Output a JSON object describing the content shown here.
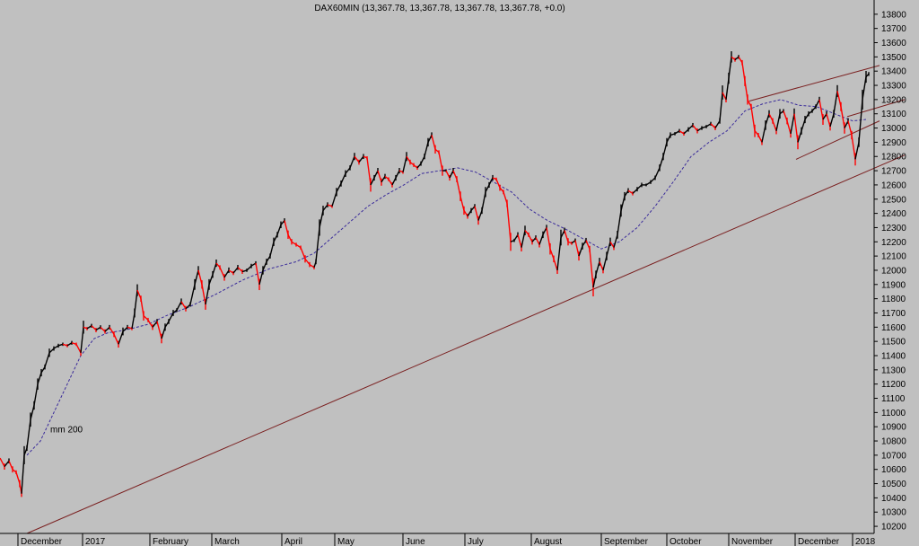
{
  "chart_data": {
    "type": "line",
    "title": "DAX60MIN (13,367.78, 13,367.78, 13,367.78, 13,367.78, +0.0)",
    "xlabel": "",
    "ylabel": "",
    "grid": false,
    "ylim": [
      10150,
      13900
    ],
    "y_ticks": [
      10200,
      10300,
      10400,
      10500,
      10600,
      10700,
      10800,
      10900,
      11000,
      11100,
      11200,
      11300,
      11400,
      11500,
      11600,
      11700,
      11800,
      11900,
      12000,
      12100,
      12200,
      12300,
      12400,
      12500,
      12600,
      12700,
      12800,
      12900,
      13000,
      13100,
      13200,
      13300,
      13400,
      13500,
      13600,
      13700,
      13800
    ],
    "months": [
      "December",
      "2017",
      "February",
      "March",
      "April",
      "May",
      "June",
      "July",
      "August",
      "September",
      "October",
      "November",
      "December",
      "2018"
    ],
    "series": [
      {
        "name": "DAX60MIN",
        "color": "#000000",
        "down_color": "#ff0000",
        "values": [
          [
            0,
            10680
          ],
          [
            5,
            10620
          ],
          [
            10,
            10660
          ],
          [
            14,
            10600
          ],
          [
            18,
            10580
          ],
          [
            22,
            10500
          ],
          [
            24,
            10430
          ],
          [
            27,
            10700
          ],
          [
            30,
            10750
          ],
          [
            34,
            10950
          ],
          [
            38,
            11050
          ],
          [
            42,
            11200
          ],
          [
            46,
            11280
          ],
          [
            50,
            11320
          ],
          [
            55,
            11420
          ],
          [
            60,
            11450
          ],
          [
            65,
            11470
          ],
          [
            70,
            11480
          ],
          [
            75,
            11470
          ],
          [
            80,
            11490
          ],
          [
            85,
            11480
          ],
          [
            90,
            11420
          ],
          [
            93,
            11600
          ],
          [
            97,
            11590
          ],
          [
            102,
            11610
          ],
          [
            107,
            11580
          ],
          [
            112,
            11600
          ],
          [
            117,
            11570
          ],
          [
            122,
            11600
          ],
          [
            127,
            11550
          ],
          [
            132,
            11480
          ],
          [
            137,
            11570
          ],
          [
            142,
            11600
          ],
          [
            147,
            11590
          ],
          [
            150,
            11700
          ],
          [
            153,
            11860
          ],
          [
            157,
            11800
          ],
          [
            160,
            11680
          ],
          [
            165,
            11650
          ],
          [
            170,
            11600
          ],
          [
            175,
            11640
          ],
          [
            180,
            11520
          ],
          [
            184,
            11600
          ],
          [
            188,
            11640
          ],
          [
            193,
            11700
          ],
          [
            197,
            11720
          ],
          [
            202,
            11780
          ],
          [
            207,
            11730
          ],
          [
            212,
            11760
          ],
          [
            217,
            11900
          ],
          [
            221,
            12000
          ],
          [
            225,
            11900
          ],
          [
            229,
            11760
          ],
          [
            233,
            11900
          ],
          [
            237,
            11970
          ],
          [
            241,
            12050
          ],
          [
            245,
            12020
          ],
          [
            250,
            11950
          ],
          [
            255,
            12000
          ],
          [
            260,
            11980
          ],
          [
            265,
            12020
          ],
          [
            270,
            11990
          ],
          [
            275,
            12000
          ],
          [
            280,
            12030
          ],
          [
            285,
            12050
          ],
          [
            289,
            11900
          ],
          [
            293,
            12000
          ],
          [
            297,
            12060
          ],
          [
            301,
            12100
          ],
          [
            305,
            12200
          ],
          [
            309,
            12250
          ],
          [
            313,
            12320
          ],
          [
            317,
            12350
          ],
          [
            321,
            12250
          ],
          [
            325,
            12200
          ],
          [
            330,
            12180
          ],
          [
            335,
            12160
          ],
          [
            340,
            12080
          ],
          [
            345,
            12040
          ],
          [
            350,
            12020
          ],
          [
            352,
            12060
          ],
          [
            356,
            12300
          ],
          [
            360,
            12420
          ],
          [
            365,
            12460
          ],
          [
            370,
            12450
          ],
          [
            375,
            12550
          ],
          [
            380,
            12610
          ],
          [
            385,
            12680
          ],
          [
            390,
            12720
          ],
          [
            395,
            12800
          ],
          [
            400,
            12760
          ],
          [
            405,
            12800
          ],
          [
            409,
            12790
          ],
          [
            413,
            12600
          ],
          [
            417,
            12650
          ],
          [
            421,
            12700
          ],
          [
            425,
            12620
          ],
          [
            429,
            12660
          ],
          [
            433,
            12640
          ],
          [
            437,
            12600
          ],
          [
            441,
            12650
          ],
          [
            445,
            12700
          ],
          [
            449,
            12690
          ],
          [
            453,
            12800
          ],
          [
            457,
            12760
          ],
          [
            461,
            12740
          ],
          [
            465,
            12720
          ],
          [
            469,
            12750
          ],
          [
            473,
            12800
          ],
          [
            477,
            12900
          ],
          [
            481,
            12950
          ],
          [
            485,
            12850
          ],
          [
            489,
            12830
          ],
          [
            493,
            12700
          ],
          [
            497,
            12700
          ],
          [
            501,
            12650
          ],
          [
            505,
            12700
          ],
          [
            509,
            12640
          ],
          [
            513,
            12520
          ],
          [
            517,
            12420
          ],
          [
            521,
            12380
          ],
          [
            525,
            12420
          ],
          [
            529,
            12450
          ],
          [
            533,
            12350
          ],
          [
            537,
            12420
          ],
          [
            541,
            12550
          ],
          [
            545,
            12600
          ],
          [
            549,
            12650
          ],
          [
            553,
            12640
          ],
          [
            557,
            12580
          ],
          [
            561,
            12550
          ],
          [
            565,
            12470
          ],
          [
            569,
            12200
          ],
          [
            573,
            12210
          ],
          [
            577,
            12250
          ],
          [
            581,
            12160
          ],
          [
            585,
            12280
          ],
          [
            589,
            12250
          ],
          [
            593,
            12200
          ],
          [
            597,
            12230
          ],
          [
            601,
            12180
          ],
          [
            605,
            12250
          ],
          [
            609,
            12300
          ],
          [
            613,
            12150
          ],
          [
            617,
            12080
          ],
          [
            621,
            12000
          ],
          [
            625,
            12230
          ],
          [
            629,
            12280
          ],
          [
            633,
            12200
          ],
          [
            637,
            12190
          ],
          [
            641,
            12210
          ],
          [
            645,
            12100
          ],
          [
            649,
            12170
          ],
          [
            653,
            12210
          ],
          [
            657,
            12150
          ],
          [
            661,
            11880
          ],
          [
            664,
            11970
          ],
          [
            668,
            12060
          ],
          [
            672,
            12000
          ],
          [
            676,
            12100
          ],
          [
            680,
            12200
          ],
          [
            684,
            12160
          ],
          [
            688,
            12250
          ],
          [
            692,
            12420
          ],
          [
            696,
            12520
          ],
          [
            700,
            12560
          ],
          [
            705,
            12540
          ],
          [
            710,
            12570
          ],
          [
            715,
            12600
          ],
          [
            720,
            12600
          ],
          [
            725,
            12620
          ],
          [
            730,
            12650
          ],
          [
            735,
            12720
          ],
          [
            739,
            12800
          ],
          [
            743,
            12900
          ],
          [
            747,
            12950
          ],
          [
            752,
            12960
          ],
          [
            757,
            12980
          ],
          [
            762,
            12960
          ],
          [
            767,
            12990
          ],
          [
            772,
            13020
          ],
          [
            777,
            12980
          ],
          [
            782,
            13000
          ],
          [
            787,
            13010
          ],
          [
            792,
            13030
          ],
          [
            797,
            13000
          ],
          [
            802,
            13050
          ],
          [
            805,
            13250
          ],
          [
            809,
            13200
          ],
          [
            812,
            13350
          ],
          [
            815,
            13500
          ],
          [
            819,
            13480
          ],
          [
            823,
            13500
          ],
          [
            827,
            13460
          ],
          [
            830,
            13330
          ],
          [
            833,
            13200
          ],
          [
            837,
            13150
          ],
          [
            841,
            12980
          ],
          [
            845,
            12950
          ],
          [
            849,
            12900
          ],
          [
            853,
            13020
          ],
          [
            857,
            13100
          ],
          [
            861,
            13050
          ],
          [
            865,
            12980
          ],
          [
            869,
            13100
          ],
          [
            873,
            13120
          ],
          [
            877,
            13050
          ],
          [
            881,
            12960
          ],
          [
            885,
            13100
          ],
          [
            889,
            12900
          ],
          [
            893,
            12980
          ],
          [
            897,
            13060
          ],
          [
            901,
            13100
          ],
          [
            905,
            13120
          ],
          [
            909,
            13150
          ],
          [
            913,
            13200
          ],
          [
            917,
            13060
          ],
          [
            921,
            13100
          ],
          [
            925,
            13010
          ],
          [
            929,
            13100
          ],
          [
            933,
            13260
          ],
          [
            937,
            13150
          ],
          [
            941,
            13000
          ],
          [
            945,
            13050
          ],
          [
            949,
            12950
          ],
          [
            953,
            12780
          ],
          [
            957,
            12900
          ],
          [
            961,
            13200
          ],
          [
            965,
            13360
          ],
          [
            968,
            13380
          ]
        ]
      },
      {
        "name": "mm 200",
        "color": "#3a2b9a",
        "values": [
          [
            30,
            10700
          ],
          [
            45,
            10800
          ],
          [
            60,
            11000
          ],
          [
            75,
            11200
          ],
          [
            90,
            11400
          ],
          [
            105,
            11520
          ],
          [
            120,
            11560
          ],
          [
            140,
            11580
          ],
          [
            165,
            11620
          ],
          [
            185,
            11680
          ],
          [
            210,
            11740
          ],
          [
            240,
            11830
          ],
          [
            270,
            11930
          ],
          [
            300,
            12010
          ],
          [
            330,
            12060
          ],
          [
            350,
            12120
          ],
          [
            370,
            12230
          ],
          [
            390,
            12340
          ],
          [
            410,
            12450
          ],
          [
            430,
            12530
          ],
          [
            450,
            12600
          ],
          [
            470,
            12680
          ],
          [
            490,
            12700
          ],
          [
            510,
            12720
          ],
          [
            530,
            12690
          ],
          [
            550,
            12620
          ],
          [
            570,
            12550
          ],
          [
            590,
            12430
          ],
          [
            610,
            12350
          ],
          [
            630,
            12290
          ],
          [
            650,
            12220
          ],
          [
            670,
            12150
          ],
          [
            690,
            12200
          ],
          [
            710,
            12300
          ],
          [
            730,
            12450
          ],
          [
            750,
            12620
          ],
          [
            770,
            12800
          ],
          [
            790,
            12900
          ],
          [
            810,
            12980
          ],
          [
            830,
            13120
          ],
          [
            850,
            13170
          ],
          [
            870,
            13200
          ],
          [
            890,
            13160
          ],
          [
            910,
            13150
          ],
          [
            930,
            13100
          ],
          [
            950,
            13050
          ],
          [
            965,
            13060
          ]
        ]
      }
    ],
    "annotations": [
      {
        "text": "mm 200",
        "color": "#3a2b9a"
      }
    ],
    "trendlines": [
      {
        "from": [
          30,
          10150
        ],
        "to": [
          1008,
          12810
        ],
        "color": "#7a2020"
      },
      {
        "from": [
          835,
          13190
        ],
        "to": [
          980,
          13440
        ],
        "color": "#7a2020"
      },
      {
        "from": [
          887,
          12780
        ],
        "to": [
          980,
          13050
        ],
        "color": "#7a2020"
      },
      {
        "from": [
          944,
          13080
        ],
        "to": [
          1008,
          13200
        ],
        "color": "#7a2020"
      }
    ]
  }
}
